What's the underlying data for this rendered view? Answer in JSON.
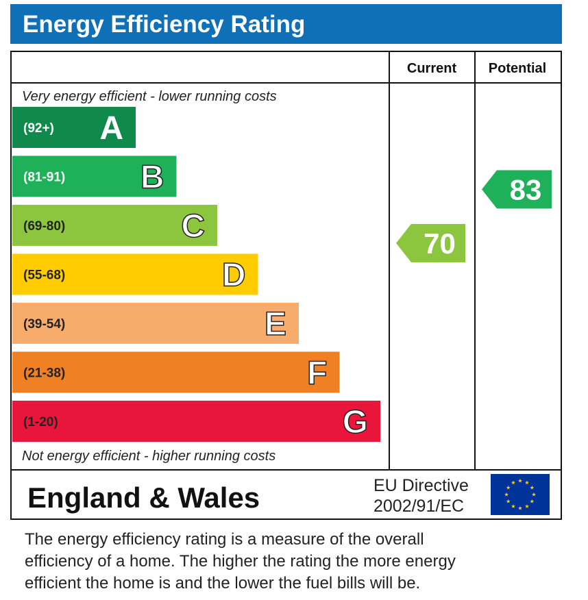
{
  "title": "Energy Efficiency Rating",
  "headers": {
    "current": "Current",
    "potential": "Potential"
  },
  "top_note": "Very energy efficient - lower running costs",
  "bottom_note": "Not energy efficient - higher running costs",
  "region": "England & Wales",
  "directive": {
    "line1": "EU Directive",
    "line2": "2002/91/EC"
  },
  "description": [
    "The energy efficiency rating is a measure of the overall",
    "efficiency of a home.  The higher the rating the more energy",
    "efficient the home is and the lower the fuel bills will be."
  ],
  "chart_data": {
    "type": "bar",
    "title": "Energy Efficiency Rating",
    "bands": [
      {
        "letter": "A",
        "range": "(92+)",
        "color": "#0f8a4a"
      },
      {
        "letter": "B",
        "range": "(81-91)",
        "color": "#1fb15a"
      },
      {
        "letter": "C",
        "range": "(69-80)",
        "color": "#8cc63f"
      },
      {
        "letter": "D",
        "range": "(55-68)",
        "color": "#ffcc00"
      },
      {
        "letter": "E",
        "range": "(39-54)",
        "color": "#f7ac6b"
      },
      {
        "letter": "F",
        "range": "(21-38)",
        "color": "#ef8023"
      },
      {
        "letter": "G",
        "range": "(1-20)",
        "color": "#e9153b"
      }
    ],
    "current": {
      "value": 70,
      "band": "C",
      "color": "#8cc63f"
    },
    "potential": {
      "value": 83,
      "band": "B",
      "color": "#1fb15a"
    }
  }
}
